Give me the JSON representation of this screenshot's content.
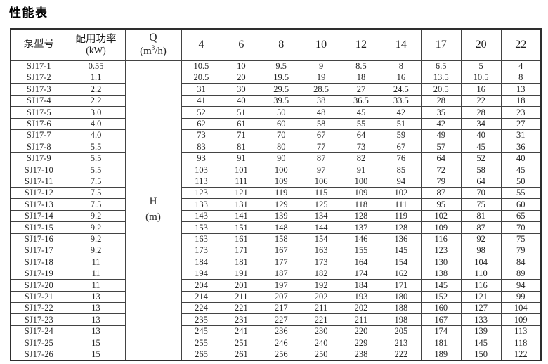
{
  "title": "性能表",
  "table": {
    "headers": {
      "model": "泵型号",
      "power_line1": "配用功率",
      "power_line2": "(kW)",
      "q_symbol": "Q",
      "q_unit_pre": "(m",
      "q_unit_sup": "3",
      "q_unit_post": "/h)",
      "flow_columns": [
        "4",
        "6",
        "8",
        "10",
        "12",
        "14",
        "17",
        "20",
        "22"
      ]
    },
    "h_label": {
      "line1": "H",
      "line2": "(m)"
    },
    "rows": [
      {
        "model": "SJ17-1",
        "power": "0.55",
        "h_values": [
          "10.5",
          "10",
          "9.5",
          "9",
          "8.5",
          "8",
          "6.5",
          "5",
          "4"
        ]
      },
      {
        "model": "SJ17-2",
        "power": "1.1",
        "h_values": [
          "20.5",
          "20",
          "19.5",
          "19",
          "18",
          "16",
          "13.5",
          "10.5",
          "8"
        ]
      },
      {
        "model": "SJ17-3",
        "power": "2.2",
        "h_values": [
          "31",
          "30",
          "29.5",
          "28.5",
          "27",
          "24.5",
          "20.5",
          "16",
          "13"
        ]
      },
      {
        "model": "SJ17-4",
        "power": "2.2",
        "h_values": [
          "41",
          "40",
          "39.5",
          "38",
          "36.5",
          "33.5",
          "28",
          "22",
          "18"
        ]
      },
      {
        "model": "SJ17-5",
        "power": "3.0",
        "h_values": [
          "52",
          "51",
          "50",
          "48",
          "45",
          "42",
          "35",
          "28",
          "23"
        ]
      },
      {
        "model": "SJ17-6",
        "power": "4.0",
        "h_values": [
          "62",
          "61",
          "60",
          "58",
          "55",
          "51",
          "42",
          "34",
          "27"
        ]
      },
      {
        "model": "SJ17-7",
        "power": "4.0",
        "h_values": [
          "73",
          "71",
          "70",
          "67",
          "64",
          "59",
          "49",
          "40",
          "31"
        ]
      },
      {
        "model": "SJ17-8",
        "power": "5.5",
        "h_values": [
          "83",
          "81",
          "80",
          "77",
          "73",
          "67",
          "57",
          "45",
          "36"
        ]
      },
      {
        "model": "SJ17-9",
        "power": "5.5",
        "h_values": [
          "93",
          "91",
          "90",
          "87",
          "82",
          "76",
          "64",
          "52",
          "40"
        ]
      },
      {
        "model": "SJ17-10",
        "power": "5.5",
        "h_values": [
          "103",
          "101",
          "100",
          "97",
          "91",
          "85",
          "72",
          "58",
          "45"
        ]
      },
      {
        "model": "SJ17-11",
        "power": "7.5",
        "h_values": [
          "113",
          "111",
          "109",
          "106",
          "100",
          "94",
          "79",
          "64",
          "50"
        ]
      },
      {
        "model": "SJ17-12",
        "power": "7.5",
        "h_values": [
          "123",
          "121",
          "119",
          "115",
          "109",
          "102",
          "87",
          "70",
          "55"
        ]
      },
      {
        "model": "SJ17-13",
        "power": "7.5",
        "h_values": [
          "133",
          "131",
          "129",
          "125",
          "118",
          "111",
          "95",
          "75",
          "60"
        ]
      },
      {
        "model": "SJ17-14",
        "power": "9.2",
        "h_values": [
          "143",
          "141",
          "139",
          "134",
          "128",
          "119",
          "102",
          "81",
          "65"
        ]
      },
      {
        "model": "SJ17-15",
        "power": "9.2",
        "h_values": [
          "153",
          "151",
          "148",
          "144",
          "137",
          "128",
          "109",
          "87",
          "70"
        ]
      },
      {
        "model": "SJ17-16",
        "power": "9.2",
        "h_values": [
          "163",
          "161",
          "158",
          "154",
          "146",
          "136",
          "116",
          "92",
          "75"
        ]
      },
      {
        "model": "SJ17-17",
        "power": "9.2",
        "h_values": [
          "173",
          "171",
          "167",
          "163",
          "155",
          "145",
          "123",
          "98",
          "79"
        ]
      },
      {
        "model": "SJ17-18",
        "power": "11",
        "h_values": [
          "184",
          "181",
          "177",
          "173",
          "164",
          "154",
          "130",
          "104",
          "84"
        ]
      },
      {
        "model": "SJ17-19",
        "power": "11",
        "h_values": [
          "194",
          "191",
          "187",
          "182",
          "174",
          "162",
          "138",
          "110",
          "89"
        ]
      },
      {
        "model": "SJ17-20",
        "power": "11",
        "h_values": [
          "204",
          "201",
          "197",
          "192",
          "184",
          "171",
          "145",
          "116",
          "94"
        ]
      },
      {
        "model": "SJ17-21",
        "power": "13",
        "h_values": [
          "214",
          "211",
          "207",
          "202",
          "193",
          "180",
          "152",
          "121",
          "99"
        ]
      },
      {
        "model": "SJ17-22",
        "power": "13",
        "h_values": [
          "224",
          "221",
          "217",
          "211",
          "202",
          "188",
          "160",
          "127",
          "104"
        ]
      },
      {
        "model": "SJ17-23",
        "power": "13",
        "h_values": [
          "235",
          "231",
          "227",
          "221",
          "211",
          "198",
          "167",
          "133",
          "109"
        ]
      },
      {
        "model": "SJ17-24",
        "power": "13",
        "h_values": [
          "245",
          "241",
          "236",
          "230",
          "220",
          "205",
          "174",
          "139",
          "113"
        ]
      },
      {
        "model": "SJ17-25",
        "power": "15",
        "h_values": [
          "255",
          "251",
          "246",
          "240",
          "229",
          "213",
          "181",
          "145",
          "118"
        ]
      },
      {
        "model": "SJ17-26",
        "power": "15",
        "h_values": [
          "265",
          "261",
          "256",
          "250",
          "238",
          "222",
          "189",
          "150",
          "122"
        ]
      }
    ]
  }
}
